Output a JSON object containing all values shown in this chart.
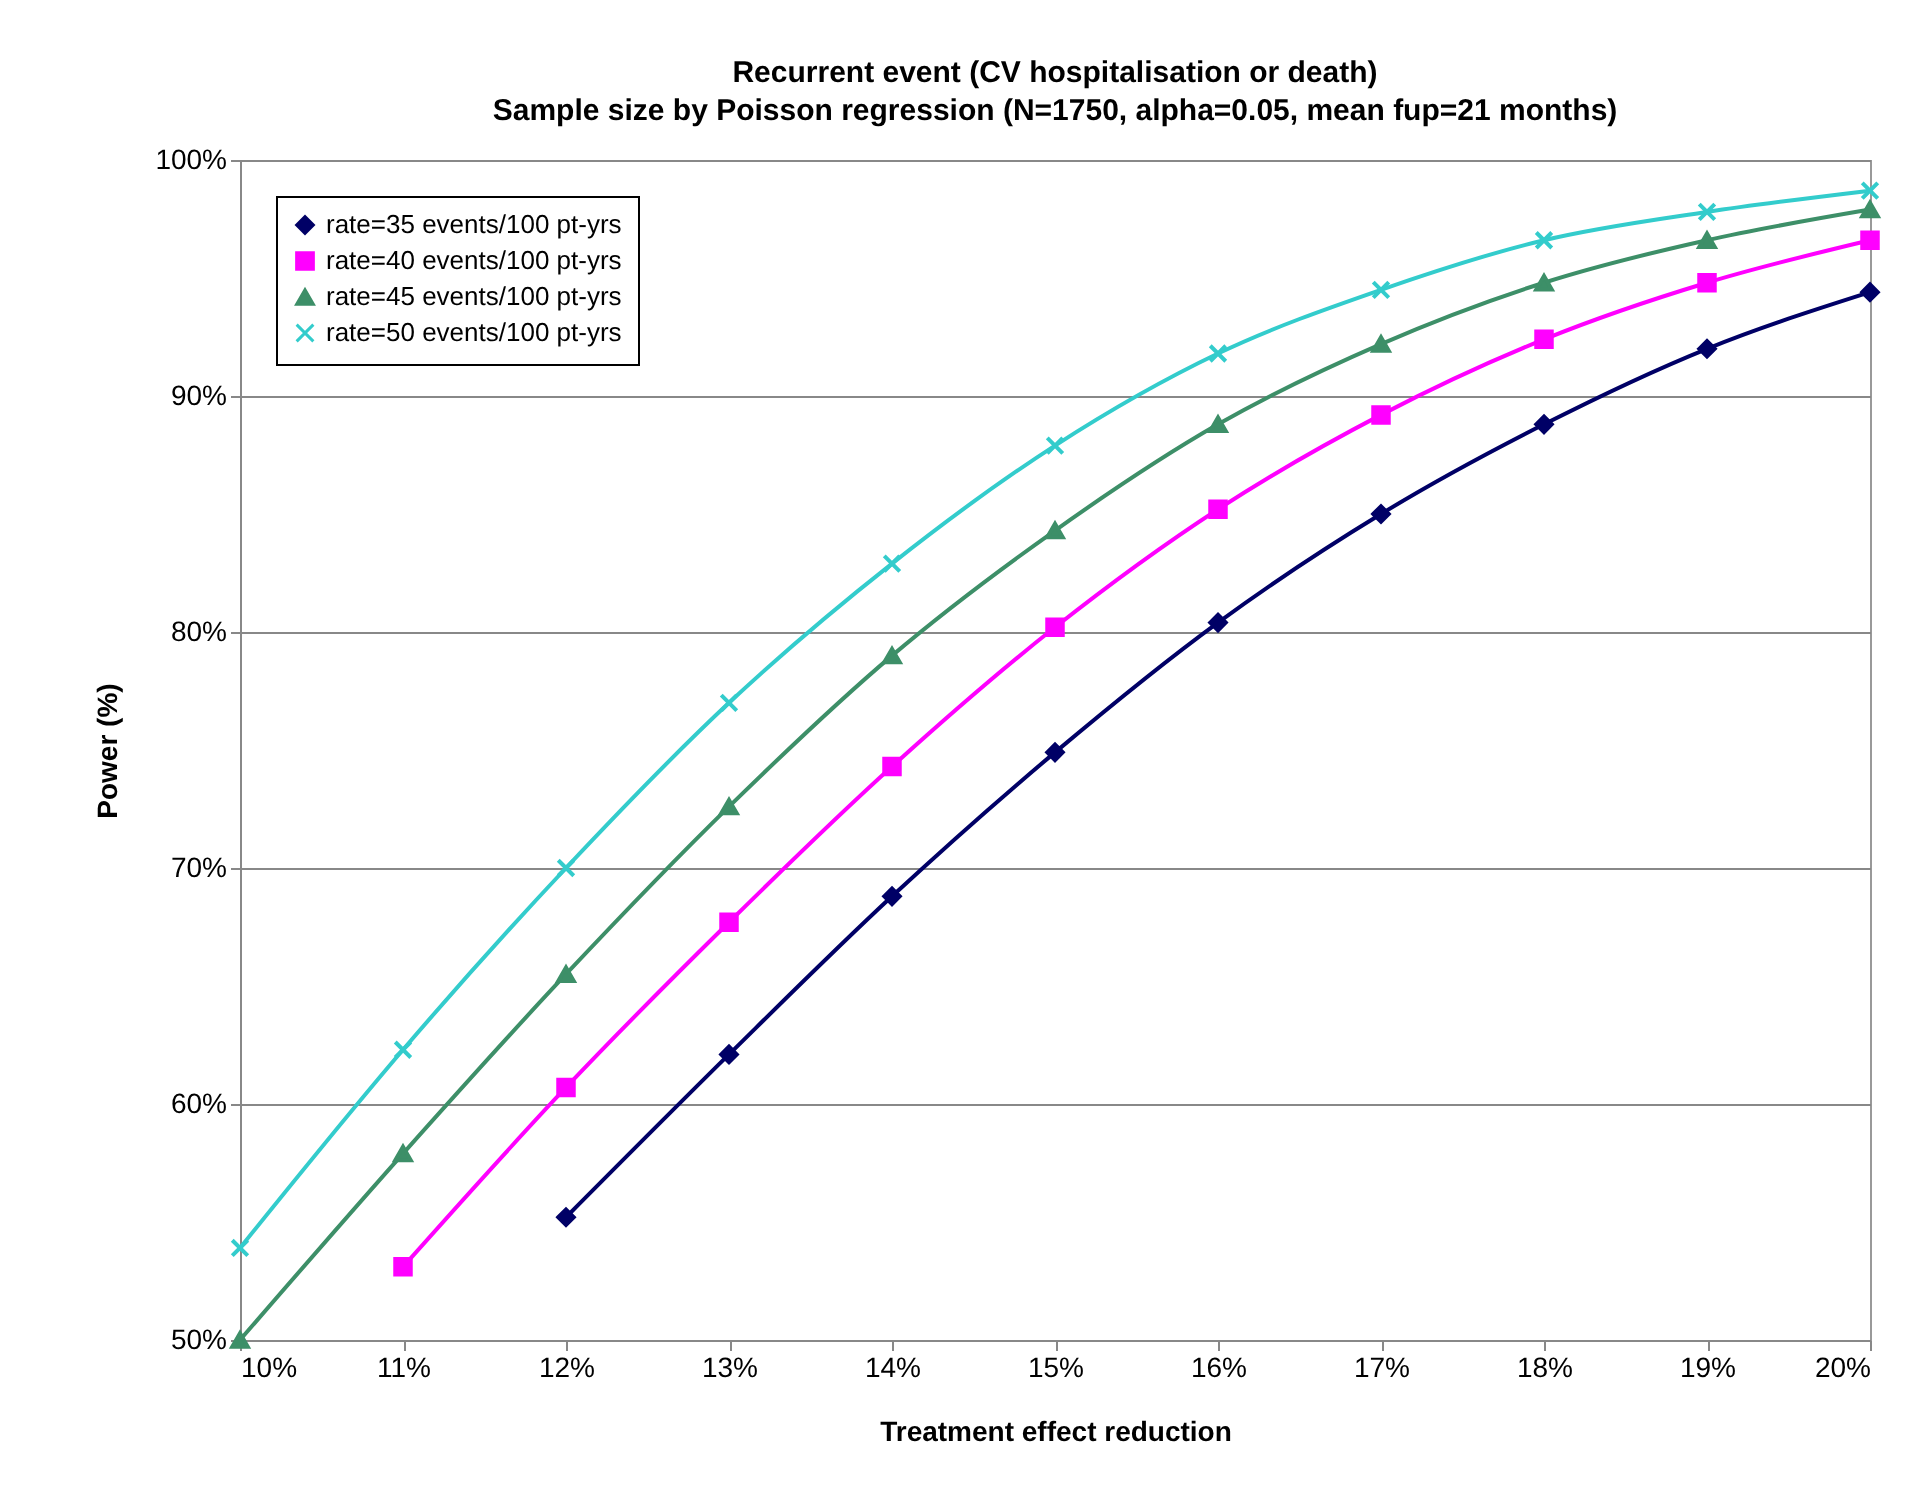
{
  "chart_data": {
    "type": "line",
    "title": "Recurrent event (CV hospitalisation or death)",
    "subtitle": "Sample size by Poisson regression (N=1750, alpha=0.05, mean fup=21 months)",
    "xlabel": "Treatment effect reduction",
    "ylabel": "Power (%)",
    "categories": [
      "10%",
      "11%",
      "12%",
      "13%",
      "14%",
      "15%",
      "16%",
      "17%",
      "18%",
      "19%",
      "20%"
    ],
    "ylim": [
      50,
      100
    ],
    "yticks": [
      {
        "value": 50,
        "label": "50%"
      },
      {
        "value": 60,
        "label": "60%"
      },
      {
        "value": 70,
        "label": "70%"
      },
      {
        "value": 80,
        "label": "80%"
      },
      {
        "value": 90,
        "label": "90%"
      },
      {
        "value": 100,
        "label": "100%"
      }
    ],
    "grid": "y",
    "legend": "top left",
    "line_style": "solid",
    "series": [
      {
        "name": "rate=35 events/100 pt-yrs",
        "color": "#000066",
        "marker": "diamond",
        "values": [
          null,
          null,
          55.2,
          62.1,
          68.8,
          74.9,
          80.4,
          85.0,
          88.8,
          92.0,
          94.4
        ]
      },
      {
        "name": "rate=40 events/100 pt-yrs",
        "color": "#ff00ff",
        "marker": "square",
        "values": [
          null,
          53.1,
          60.7,
          67.7,
          74.3,
          80.2,
          85.2,
          89.2,
          92.4,
          94.8,
          96.6
        ]
      },
      {
        "name": "rate=45 events/100 pt-yrs",
        "color": "#3d8f68",
        "marker": "triangle",
        "values": [
          50.0,
          57.9,
          65.5,
          72.6,
          79.0,
          84.3,
          88.8,
          92.2,
          94.8,
          96.6,
          97.9
        ]
      },
      {
        "name": "rate=50 events/100 pt-yrs",
        "color": "#33cccc",
        "marker": "cross",
        "values": [
          53.9,
          62.3,
          70.0,
          77.0,
          82.9,
          87.9,
          91.8,
          94.5,
          96.6,
          97.8,
          98.7
        ]
      }
    ]
  }
}
